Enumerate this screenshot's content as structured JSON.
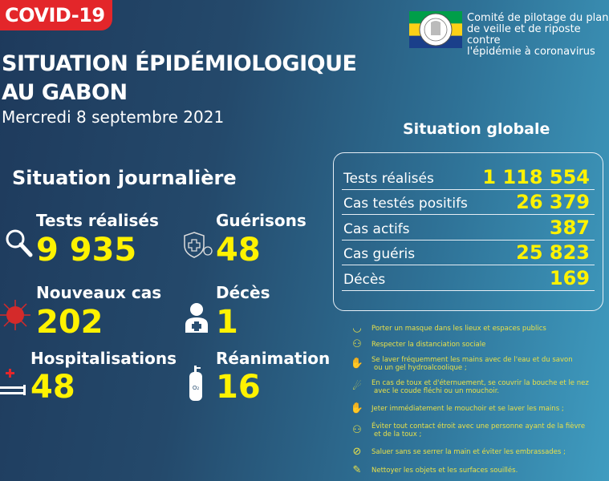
{
  "badge": "COVID-19",
  "title": {
    "line1": "SITUATION ÉPIDÉMIOLOGIQUE",
    "line2": "AU GABON",
    "date": "Mercredi 8 septembre 2021"
  },
  "org": {
    "line1": "Comité de pilotage du plan",
    "line2": "de veille et de riposte contre",
    "line3": "l'épidémie à coronavirus",
    "flag_colors": [
      "#009e49",
      "#fcd116",
      "#3a75c4"
    ]
  },
  "daily": {
    "title": "Situation journalière",
    "items": [
      {
        "label": "Tests réalisés",
        "value": "9 935",
        "icon": "magnifier-icon"
      },
      {
        "label": "Guérisons",
        "value": "48",
        "icon": "shield-cross-icon"
      },
      {
        "label": "Nouveaux cas",
        "value": "202",
        "icon": "virus-icon"
      },
      {
        "label": "Décès",
        "value": "1",
        "icon": "doctor-icon"
      },
      {
        "label": "Hospitalisations",
        "value": "48",
        "icon": "hospital-bed-icon"
      },
      {
        "label": "Réanimation",
        "value": "16",
        "icon": "oxygen-tank-icon"
      }
    ]
  },
  "global": {
    "title": "Situation globale",
    "rows": [
      {
        "label": "Tests réalisés",
        "value": "1 118 554"
      },
      {
        "label": "Cas testés positifs",
        "value": "26 379"
      },
      {
        "label": "Cas actifs",
        "value": "387"
      },
      {
        "label": "Cas guéris",
        "value": "25 823"
      },
      {
        "label": "Décès",
        "value": "169"
      }
    ]
  },
  "advice": [
    {
      "l1": "Porter un masque dans les lieux et espaces publics",
      "l2": ""
    },
    {
      "l1": "Respecter la distanciation sociale",
      "l2": ""
    },
    {
      "l1": "Se laver fréquemment les mains avec de l'eau et du savon",
      "l2": "ou un gel hydroalcoolique ;"
    },
    {
      "l1": "En cas de toux et d'éternuement, se couvrir la bouche et le nez",
      "l2": "avec le coude fléchi ou un mouchoir."
    },
    {
      "l1": "Jeter immédiatement le mouchoir et se laver les mains ;",
      "l2": ""
    },
    {
      "l1": "Éviter tout contact étroit avec une personne ayant de la fièvre",
      "l2": "et de la toux ;"
    },
    {
      "l1": "Saluer sans se serrer la main et éviter les embrassades ;",
      "l2": ""
    },
    {
      "l1": "Nettoyer les objets et les surfaces souillés.",
      "l2": ""
    }
  ],
  "colors": {
    "accent_yellow": "#fff200",
    "badge_red": "#e3262a",
    "virus_red": "#d42a2a"
  }
}
